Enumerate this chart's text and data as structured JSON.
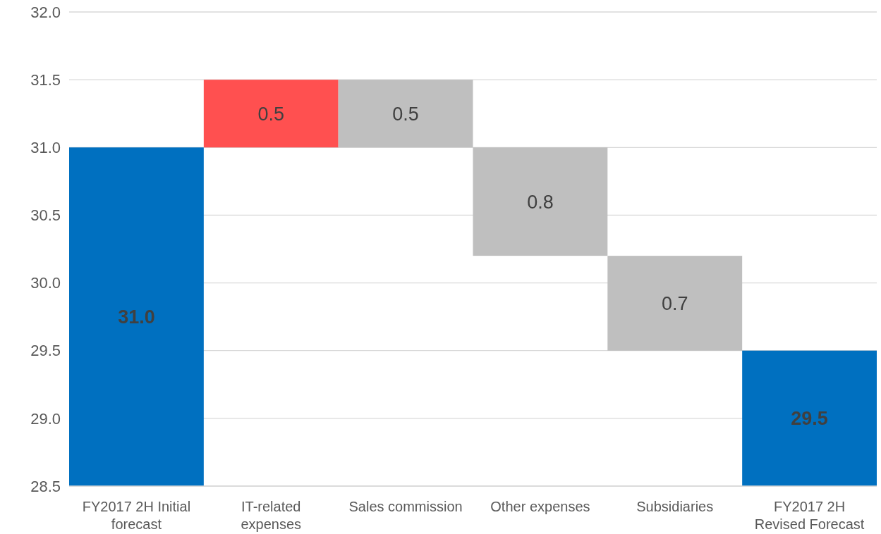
{
  "chart_data": {
    "type": "bar",
    "categories": [
      "FY2017 2H Initial forecast",
      "IT-related expenses",
      "Sales commission",
      "Other expenses",
      "Subsidiaries",
      "FY2017 2H Revised Forecast"
    ],
    "values": [
      31.0,
      0.5,
      0.5,
      0.8,
      0.7,
      29.5
    ],
    "base": [
      null,
      31.0,
      31.0,
      30.2,
      29.5,
      null
    ],
    "colors": [
      "#0070c0",
      "#ff5050",
      "#bfbfbf",
      "#bfbfbf",
      "#bfbfbf",
      "#0070c0"
    ],
    "value_labels": [
      "31.0",
      "0.5",
      "0.5",
      "0.8",
      "0.7",
      "29.5"
    ],
    "ylim": [
      28.5,
      32.0
    ],
    "yticks": [
      {
        "value": 28.5,
        "label": "28.5"
      },
      {
        "value": 29,
        "label": "29.0"
      },
      {
        "value": 29.5,
        "label": "29.5"
      },
      {
        "value": 30,
        "label": "30.0"
      },
      {
        "value": 30.5,
        "label": "30.5"
      },
      {
        "value": 31,
        "label": "31.0"
      },
      {
        "value": 31.5,
        "label": "31.5"
      },
      {
        "value": 32,
        "label": "32.0"
      }
    ],
    "grid": "y"
  }
}
